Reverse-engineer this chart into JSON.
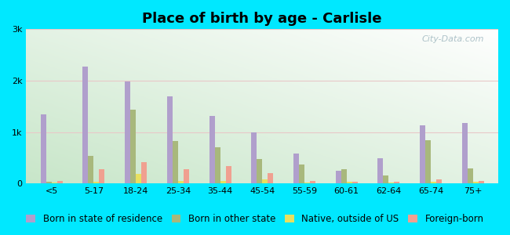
{
  "title": "Place of birth by age - Carlisle",
  "categories": [
    "<5",
    "5-17",
    "18-24",
    "25-34",
    "35-44",
    "45-54",
    "55-59",
    "60-61",
    "62-64",
    "65-74",
    "75+"
  ],
  "series": {
    "Born in state of residence": [
      1350,
      2280,
      1980,
      1700,
      1320,
      1000,
      580,
      240,
      490,
      1130,
      1170
    ],
    "Born in other state": [
      25,
      530,
      1440,
      820,
      710,
      470,
      370,
      280,
      160,
      840,
      290
    ],
    "Native, outside of US": [
      15,
      35,
      190,
      45,
      45,
      80,
      20,
      25,
      18,
      28,
      28
    ],
    "Foreign-born": [
      45,
      280,
      420,
      270,
      330,
      200,
      45,
      25,
      25,
      75,
      45
    ]
  },
  "colors": {
    "Born in state of residence": "#b09fcc",
    "Born in other state": "#a8b87c",
    "Native, outside of US": "#e8e060",
    "Foreign-born": "#f0a090"
  },
  "ylim": [
    0,
    3000
  ],
  "yticks": [
    0,
    1000,
    2000,
    3000
  ],
  "ytick_labels": [
    "0",
    "1k",
    "2k",
    "3k"
  ],
  "bg_outer": "#00e8ff",
  "watermark": "City-Data.com",
  "bar_width": 0.13,
  "legend_fontsize": 8.5,
  "title_fontsize": 13,
  "grid_color": "#e8c8c8",
  "tick_fontsize": 8
}
